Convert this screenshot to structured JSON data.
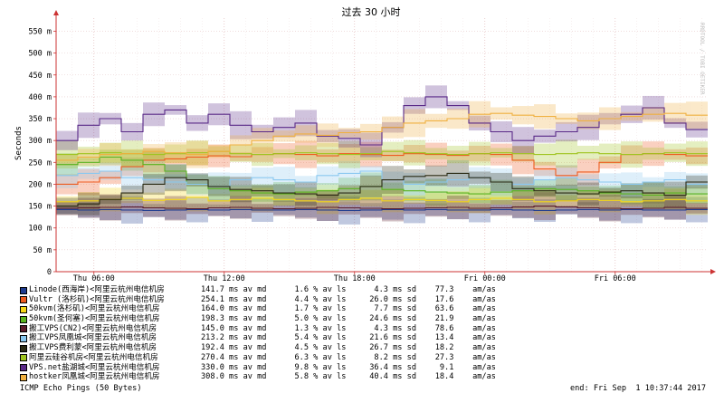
{
  "chart_data": {
    "type": "line",
    "title": "过去 30 小时",
    "ylabel": "Seconds",
    "ylim": [
      0,
      0.58
    ],
    "yticks": [
      {
        "value": 0,
        "label": "0"
      },
      {
        "value": 0.05,
        "label": "50 m"
      },
      {
        "value": 0.1,
        "label": "100 m"
      },
      {
        "value": 0.15,
        "label": "150 m"
      },
      {
        "value": 0.2,
        "label": "200 m"
      },
      {
        "value": 0.25,
        "label": "250 m"
      },
      {
        "value": 0.3,
        "label": "300 m"
      },
      {
        "value": 0.35,
        "label": "350 m"
      },
      {
        "value": 0.4,
        "label": "400 m"
      },
      {
        "value": 0.45,
        "label": "450 m"
      },
      {
        "value": 0.5,
        "label": "500 m"
      },
      {
        "value": 0.55,
        "label": "550 m"
      }
    ],
    "xrange_hours": [
      0,
      30
    ],
    "xticks": [
      {
        "hour": 1.74,
        "label": "Thu 06:00"
      },
      {
        "hour": 7.74,
        "label": "Thu 12:00"
      },
      {
        "hour": 13.74,
        "label": "Thu 18:00"
      },
      {
        "hour": 19.74,
        "label": "Fri 00:00"
      },
      {
        "hour": 25.74,
        "label": "Fri 06:00"
      }
    ],
    "grid": true,
    "watermark": "RRDTOOL / TOBI OETIKER",
    "series": [
      {
        "name": "Linode(西海岸)<阿里云杭州电信机房",
        "color": "#1f3c8f",
        "stats": "141.7 ms av md      1.6 % av ls      4.3 ms sd    77.3    am/as",
        "values_ms": [
          142,
          141,
          142,
          141,
          140,
          141,
          142,
          141,
          142,
          141,
          141,
          142,
          141,
          140,
          141,
          142,
          141,
          142,
          141,
          141,
          142,
          141,
          140,
          141,
          142,
          141,
          142,
          141,
          141,
          142
        ]
      },
      {
        "name": "Vultr (洛杉矶)<阿里云杭州电信机房",
        "color": "#ee5b1f",
        "stats": "254.1 ms av md      4.4 % av ls     26.0 ms sd    17.6    am/as",
        "values_ms": [
          200,
          205,
          215,
          240,
          255,
          258,
          262,
          265,
          263,
          268,
          270,
          268,
          265,
          270,
          268,
          266,
          270,
          268,
          266,
          270,
          268,
          255,
          235,
          220,
          228,
          250,
          268,
          270,
          268,
          265
        ]
      },
      {
        "name": "50kvm(洛杉矶)<阿里云杭州电信机房",
        "color": "#f5d718",
        "stats": "164.0 ms av md      1.7 % av ls      7.7 ms sd    63.6    am/as",
        "values_ms": [
          160,
          162,
          165,
          168,
          163,
          165,
          170,
          162,
          165,
          168,
          165,
          162,
          160,
          165,
          168,
          162,
          165,
          163,
          160,
          165,
          168,
          165,
          160,
          162,
          165,
          163,
          160,
          162,
          165,
          162
        ]
      },
      {
        "name": "50kvm(圣何塞)<阿里云杭州电信机房",
        "color": "#59b320",
        "stats": "198.3 ms av md      5.0 % av ls     24.6 ms sd    21.9    am/as",
        "values_ms": [
          245,
          250,
          262,
          255,
          245,
          230,
          200,
          190,
          185,
          180,
          178,
          182,
          185,
          190,
          195,
          188,
          185,
          182,
          180,
          178,
          182,
          185,
          190,
          188,
          185,
          180,
          178,
          175,
          180,
          178
        ]
      },
      {
        "name": "搬工VPS(CN2)<阿里云杭州电信机房",
        "color": "#5a1a2a",
        "stats": "145.0 ms av md      1.3 % av ls      4.3 ms sd    78.6    am/as",
        "values_ms": [
          145,
          146,
          147,
          148,
          146,
          145,
          144,
          146,
          147,
          145,
          144,
          145,
          147,
          146,
          145,
          144,
          145,
          146,
          147,
          145,
          146,
          148,
          150,
          148,
          146,
          145,
          144,
          145,
          147,
          145
        ]
      },
      {
        "name": "搬工VPS凤凰城<阿里云杭州电信机房",
        "color": "#8ac8f0",
        "stats": "213.2 ms av md      5.4 % av ls     21.6 ms sd    13.4    am/as",
        "values_ms": [
          220,
          225,
          230,
          215,
          210,
          205,
          200,
          195,
          210,
          215,
          210,
          205,
          220,
          225,
          230,
          210,
          200,
          205,
          210,
          215,
          205,
          200,
          210,
          215,
          210,
          205,
          200,
          205,
          210,
          200
        ]
      },
      {
        "name": "搬工VPS费利蒙<阿里云杭州电信机房",
        "color": "#2a2a14",
        "stats": "192.4 ms av md      4.5 % av ls     26.7 ms sd    18.2    am/as",
        "values_ms": [
          150,
          155,
          165,
          180,
          200,
          215,
          210,
          195,
          188,
          185,
          180,
          178,
          175,
          180,
          195,
          210,
          218,
          220,
          225,
          215,
          205,
          190,
          185,
          180,
          178,
          182,
          185,
          180,
          175,
          205
        ]
      },
      {
        "name": "阿里云硅谷机房<阿里云杭州电信机房",
        "color": "#9fc420",
        "stats": "270.4 ms av md      6.3 % av ls      8.2 ms sd    27.3    am/as",
        "values_ms": [
          268,
          270,
          272,
          270,
          268,
          270,
          272,
          275,
          270,
          268,
          270,
          272,
          270,
          268,
          270,
          275,
          272,
          270,
          268,
          270,
          272,
          270,
          268,
          270,
          272,
          270,
          268,
          270,
          272,
          270
        ]
      },
      {
        "name": "VPS.net盐湖城<阿里云杭州电信机房",
        "color": "#5a2a88",
        "stats": "330.0 ms av md      9.8 % av ls     36.4 ms sd     9.1    am/as",
        "values_ms": [
          300,
          335,
          350,
          320,
          360,
          370,
          340,
          360,
          335,
          320,
          330,
          340,
          310,
          305,
          290,
          330,
          380,
          400,
          380,
          340,
          320,
          300,
          310,
          320,
          330,
          350,
          360,
          375,
          340,
          325
        ]
      },
      {
        "name": "hostker凤凰城<阿里云杭州电信机房",
        "color": "#f0b040",
        "stats": "308.0 ms av md      5.8 % av ls     40.4 ms sd    18.4    am/as",
        "values_ms": [
          255,
          262,
          268,
          270,
          275,
          272,
          268,
          275,
          290,
          300,
          310,
          315,
          312,
          318,
          320,
          330,
          340,
          345,
          350,
          360,
          362,
          358,
          355,
          350,
          345,
          350,
          355,
          360,
          362,
          358
        ]
      }
    ],
    "footer_left": "ICMP Echo Pings (50 Bytes)",
    "footer_right": "end: Fri Sep  1 10:37:44 2017"
  }
}
